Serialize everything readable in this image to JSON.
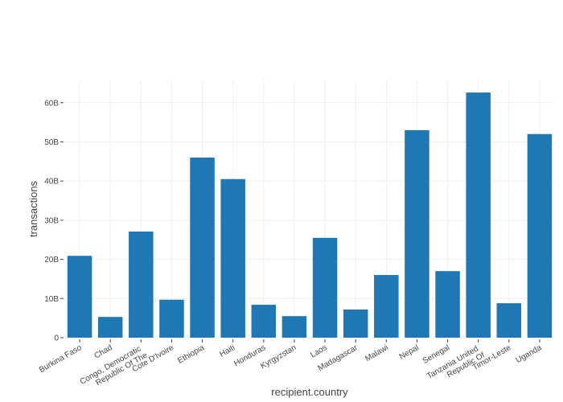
{
  "chart_data": {
    "type": "bar",
    "title": "",
    "xlabel": "recipient.country",
    "ylabel": "transactions",
    "ylim": [
      0,
      65.7
    ],
    "y_unit_suffix": "B",
    "yticks": [
      0,
      10,
      20,
      30,
      40,
      50,
      60
    ],
    "ytick_labels": [
      "0",
      "10B",
      "20B",
      "30B",
      "40B",
      "50B",
      "60B"
    ],
    "grid": true,
    "bar_color": "#1f77b4",
    "categories": [
      "Burkina Faso",
      "Chad",
      "Congo, Democratic Republic Of The",
      "Cote D'Ivoire",
      "Ethiopia",
      "Haiti",
      "Honduras",
      "Kyrgyzstan",
      "Laos",
      "Madagascar",
      "Malawi",
      "Nepal",
      "Senegal",
      "Tanzania United Republic Of",
      "Timor-Leste",
      "Uganda"
    ],
    "values": [
      20.9,
      5.3,
      27.1,
      9.7,
      46.0,
      40.5,
      8.4,
      5.5,
      25.5,
      7.2,
      16.0,
      53.0,
      17.0,
      62.6,
      8.8,
      52.0
    ]
  }
}
